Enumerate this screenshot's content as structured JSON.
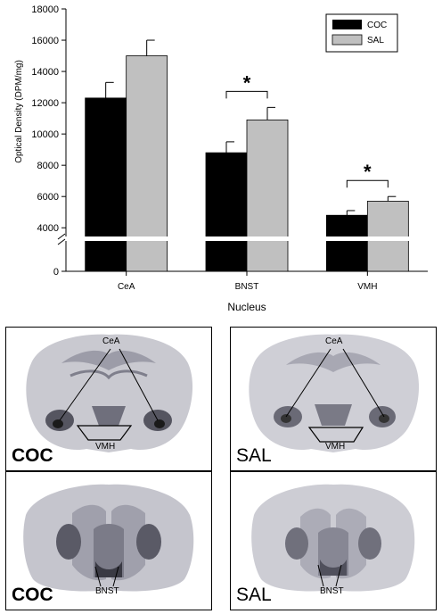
{
  "chart_data": {
    "type": "bar",
    "categories": [
      "CeA",
      "BNST",
      "VMH"
    ],
    "series": [
      {
        "name": "COC",
        "color": "#000000",
        "values": [
          12300,
          8800,
          4800
        ],
        "errors": [
          1000,
          700,
          300
        ]
      },
      {
        "name": "SAL",
        "color": "#c0c0c0",
        "values": [
          15000,
          10900,
          5700
        ],
        "errors": [
          1000,
          800,
          300
        ]
      }
    ],
    "xlabel": "Nucleus",
    "ylabel": "Optical Density (DPM/mg)",
    "ylim": [
      0,
      18000
    ],
    "y_axis_break": [
      0,
      3500
    ],
    "yticks": [
      "0",
      "4000",
      "6000",
      "8000",
      "10000",
      "12000",
      "14000",
      "16000",
      "18000"
    ],
    "ytick_values": [
      0,
      4000,
      6000,
      8000,
      10000,
      12000,
      14000,
      16000,
      18000
    ],
    "significance": [
      {
        "category": "BNST",
        "label": "*"
      },
      {
        "category": "VMH",
        "label": "*"
      }
    ],
    "legend_position": "top-right",
    "grid": false
  },
  "panels": [
    {
      "group": "COC",
      "label": "COC",
      "structures": [
        "CeA",
        "VMH"
      ]
    },
    {
      "group": "SAL",
      "label": "SAL",
      "structures": [
        "CeA",
        "VMH"
      ]
    },
    {
      "group": "COC",
      "label": "COC",
      "structures": [
        "BNST"
      ]
    },
    {
      "group": "SAL",
      "label": "SAL",
      "structures": [
        "BNST"
      ]
    }
  ]
}
